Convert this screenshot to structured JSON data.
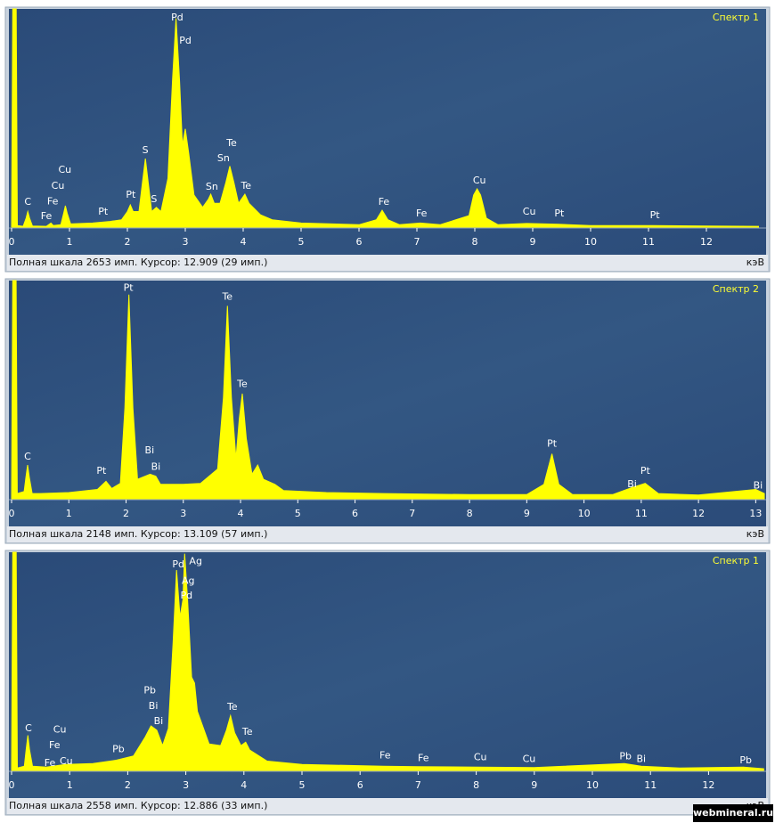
{
  "chart_data": [
    {
      "type": "area",
      "title": "Спектр 1",
      "x_label": "кэВ",
      "status": "Полная шкала 2653 имп. Курсор: 12.909 (29 имп.)",
      "color": "#ffff00",
      "xlim": [
        0,
        13.0
      ],
      "ylim": [
        0,
        2653
      ],
      "xticks": [
        0,
        1,
        2,
        3,
        4,
        5,
        6,
        7,
        8,
        9,
        10,
        11,
        12
      ],
      "x": [
        0,
        0.02,
        0.08,
        0.1,
        0.2,
        0.25,
        0.28,
        0.31,
        0.36,
        0.6,
        0.68,
        0.72,
        0.85,
        0.9,
        0.93,
        0.96,
        1.02,
        1.4,
        1.7,
        1.9,
        2.0,
        2.05,
        2.1,
        2.2,
        2.26,
        2.31,
        2.36,
        2.42,
        2.5,
        2.58,
        2.7,
        2.78,
        2.84,
        2.9,
        2.95,
        3.0,
        3.06,
        3.15,
        3.3,
        3.4,
        3.44,
        3.5,
        3.6,
        3.7,
        3.77,
        3.84,
        3.92,
        4.0,
        4.03,
        4.1,
        4.3,
        4.5,
        5.0,
        6.0,
        6.3,
        6.4,
        6.5,
        6.7,
        7.06,
        7.4,
        7.9,
        7.98,
        8.04,
        8.1,
        8.2,
        8.4,
        8.9,
        9.44,
        10.0,
        11.07,
        12.0,
        12.9
      ],
      "values": [
        0,
        2653,
        2653,
        30,
        20,
        120,
        200,
        120,
        25,
        20,
        60,
        30,
        40,
        180,
        270,
        180,
        50,
        60,
        80,
        100,
        200,
        280,
        200,
        200,
        550,
        840,
        550,
        200,
        250,
        200,
        600,
        1800,
        2540,
        1800,
        1000,
        1200,
        900,
        400,
        250,
        350,
        410,
        300,
        300,
        550,
        750,
        550,
        300,
        380,
        410,
        300,
        160,
        100,
        60,
        40,
        100,
        215,
        100,
        40,
        60,
        40,
        150,
        400,
        475,
        400,
        120,
        40,
        55,
        45,
        30,
        30,
        25,
        20
      ],
      "annotations": [
        {
          "text": "C",
          "x": 0.28,
          "y": 313
        },
        {
          "text": "Fe",
          "x": 0.6,
          "y": 140
        },
        {
          "text": "Fe",
          "x": 0.71,
          "y": 320
        },
        {
          "text": "Cu",
          "x": 0.8,
          "y": 505
        },
        {
          "text": "Cu",
          "x": 0.92,
          "y": 700
        },
        {
          "text": "Pt",
          "x": 1.58,
          "y": 195
        },
        {
          "text": "Pt",
          "x": 2.06,
          "y": 400
        },
        {
          "text": "S",
          "x": 2.31,
          "y": 940
        },
        {
          "text": "S",
          "x": 2.46,
          "y": 345
        },
        {
          "text": "Pd",
          "x": 2.86,
          "y": 2545
        },
        {
          "text": "Pd",
          "x": 3.0,
          "y": 2265
        },
        {
          "text": "Sn",
          "x": 3.46,
          "y": 495
        },
        {
          "text": "Sn",
          "x": 3.66,
          "y": 840
        },
        {
          "text": "Te",
          "x": 3.8,
          "y": 1025
        },
        {
          "text": "Te",
          "x": 4.05,
          "y": 505
        },
        {
          "text": "Fe",
          "x": 6.43,
          "y": 313
        },
        {
          "text": "Fe",
          "x": 7.08,
          "y": 170
        },
        {
          "text": "Cu",
          "x": 8.08,
          "y": 570
        },
        {
          "text": "Cu",
          "x": 8.94,
          "y": 195
        },
        {
          "text": "Pt",
          "x": 9.46,
          "y": 170
        },
        {
          "text": "Pt",
          "x": 11.11,
          "y": 150
        }
      ]
    },
    {
      "type": "area",
      "title": "Спектр 2",
      "x_label": "кэВ",
      "status": "Полная шкала 2148 имп. Курсор: 13.109 (57 имп.)",
      "color": "#ffff00",
      "xlim": [
        0,
        13.15
      ],
      "ylim": [
        0,
        2148
      ],
      "xticks": [
        0,
        1,
        2,
        3,
        4,
        5,
        6,
        7,
        8,
        9,
        10,
        11,
        12,
        13
      ],
      "x": [
        0,
        0.02,
        0.08,
        0.1,
        0.22,
        0.25,
        0.28,
        0.31,
        0.36,
        0.5,
        1.0,
        1.5,
        1.65,
        1.75,
        1.9,
        1.98,
        2.05,
        2.12,
        2.2,
        2.42,
        2.52,
        2.6,
        3.0,
        3.3,
        3.6,
        3.7,
        3.77,
        3.84,
        3.92,
        3.98,
        4.03,
        4.1,
        4.2,
        4.3,
        4.4,
        4.6,
        4.75,
        5.5,
        6.5,
        8.0,
        9.0,
        9.3,
        9.44,
        9.56,
        9.8,
        10.5,
        10.84,
        11.07,
        11.3,
        12.0,
        13.0,
        13.15
      ],
      "values": [
        0,
        2148,
        2148,
        60,
        80,
        220,
        340,
        220,
        60,
        60,
        70,
        100,
        180,
        110,
        160,
        900,
        2010,
        900,
        200,
        250,
        230,
        150,
        150,
        160,
        300,
        1000,
        1900,
        1000,
        400,
        800,
        1040,
        600,
        250,
        340,
        200,
        150,
        90,
        70,
        60,
        50,
        50,
        150,
        450,
        150,
        50,
        50,
        120,
        160,
        60,
        45,
        100,
        60
      ],
      "annotations": [
        {
          "text": "C",
          "x": 0.28,
          "y": 420
        },
        {
          "text": "Pt",
          "x": 1.57,
          "y": 280
        },
        {
          "text": "Pt",
          "x": 2.04,
          "y": 2075
        },
        {
          "text": "Bi",
          "x": 2.41,
          "y": 480
        },
        {
          "text": "Bi",
          "x": 2.52,
          "y": 320
        },
        {
          "text": "Te",
          "x": 3.77,
          "y": 1985
        },
        {
          "text": "Te",
          "x": 4.03,
          "y": 1130
        },
        {
          "text": "Pt",
          "x": 9.44,
          "y": 545
        },
        {
          "text": "Bi",
          "x": 10.84,
          "y": 150
        },
        {
          "text": "Pt",
          "x": 11.07,
          "y": 280
        },
        {
          "text": "Bi",
          "x": 13.04,
          "y": 135
        }
      ]
    },
    {
      "type": "area",
      "title": "Спектр 1",
      "x_label": "кэВ",
      "status": "Полная шкала 2558 имп. Курсор: 12.886 (33 имп.)",
      "color": "#ffff00",
      "xlim": [
        0,
        12.96
      ],
      "ylim": [
        0,
        2558
      ],
      "xticks": [
        0,
        1,
        2,
        3,
        4,
        5,
        6,
        7,
        8,
        9,
        10,
        11,
        12
      ],
      "x": [
        0,
        0.02,
        0.08,
        0.1,
        0.22,
        0.25,
        0.28,
        0.31,
        0.36,
        0.6,
        0.93,
        1.4,
        1.8,
        2.1,
        2.3,
        2.4,
        2.5,
        2.6,
        2.7,
        2.78,
        2.84,
        2.9,
        2.95,
        2.98,
        3.03,
        3.1,
        3.15,
        3.2,
        3.4,
        3.6,
        3.7,
        3.77,
        3.84,
        3.95,
        4.03,
        4.1,
        4.4,
        5.0,
        6.4,
        7.0,
        8.04,
        9.0,
        10.55,
        10.84,
        11.5,
        12.6,
        12.95
      ],
      "values": [
        0,
        2558,
        2558,
        40,
        60,
        250,
        420,
        250,
        60,
        50,
        80,
        90,
        130,
        180,
        400,
        530,
        480,
        300,
        500,
        1500,
        2350,
        1800,
        2000,
        2540,
        2000,
        1100,
        1030,
        700,
        320,
        300,
        480,
        650,
        450,
        300,
        340,
        250,
        120,
        80,
        60,
        55,
        50,
        45,
        90,
        60,
        40,
        50,
        30
      ],
      "annotations": [
        {
          "text": "C",
          "x": 0.29,
          "y": 500
        },
        {
          "text": "Fe",
          "x": 0.74,
          "y": 300
        },
        {
          "text": "Fe",
          "x": 0.66,
          "y": 95
        },
        {
          "text": "Cu",
          "x": 0.83,
          "y": 485
        },
        {
          "text": "Cu",
          "x": 0.94,
          "y": 115
        },
        {
          "text": "Pb",
          "x": 1.84,
          "y": 255
        },
        {
          "text": "Pb",
          "x": 2.38,
          "y": 940
        },
        {
          "text": "Bi",
          "x": 2.44,
          "y": 760
        },
        {
          "text": "Bi",
          "x": 2.53,
          "y": 580
        },
        {
          "text": "Pd",
          "x": 2.87,
          "y": 2410
        },
        {
          "text": "Ag",
          "x": 3.17,
          "y": 2450
        },
        {
          "text": "Ag",
          "x": 3.04,
          "y": 2220
        },
        {
          "text": "Pd",
          "x": 3.01,
          "y": 2050
        },
        {
          "text": "Te",
          "x": 3.8,
          "y": 750
        },
        {
          "text": "Te",
          "x": 4.06,
          "y": 455
        },
        {
          "text": "Fe",
          "x": 6.43,
          "y": 180
        },
        {
          "text": "Fe",
          "x": 7.09,
          "y": 150
        },
        {
          "text": "Cu",
          "x": 8.07,
          "y": 160
        },
        {
          "text": "Cu",
          "x": 8.91,
          "y": 140
        },
        {
          "text": "Pb",
          "x": 10.57,
          "y": 170
        },
        {
          "text": "Bi",
          "x": 10.84,
          "y": 140
        },
        {
          "text": "Pb",
          "x": 12.64,
          "y": 125
        }
      ]
    }
  ],
  "watermark": "webmineral.ru"
}
